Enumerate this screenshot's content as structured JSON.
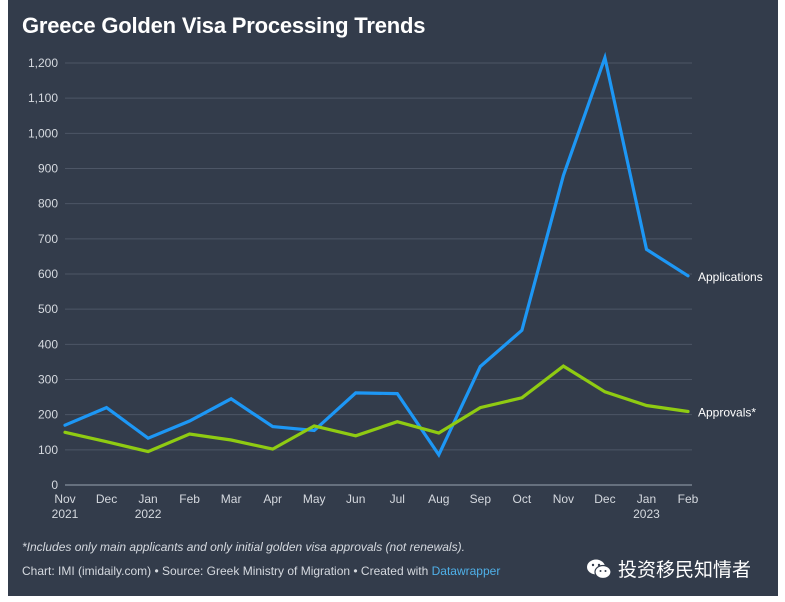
{
  "title": "Greece Golden Visa Processing Trends",
  "note": "*Includes only main applicants and only initial golden visa approvals (not renewals).",
  "credit": {
    "prefix": "Chart: IMI (imidaily.com) • Source: Greek Ministry of Migration • Created with ",
    "tool": "Datawrapper"
  },
  "watermark": {
    "text": "投资移民知情者",
    "icon": "wechat-icon"
  },
  "colors": {
    "background": "#333c4b",
    "applications": "#1d97f5",
    "approvals": "#8fcb12",
    "grid": "#4d5666"
  },
  "chart_data": {
    "type": "line",
    "title": "Greece Golden Visa Processing Trends",
    "x": [
      "Nov",
      "Dec",
      "Jan",
      "Feb",
      "Mar",
      "Apr",
      "May",
      "Jun",
      "Jul",
      "Aug",
      "Sep",
      "Oct",
      "Nov",
      "Dec",
      "Jan",
      "Feb"
    ],
    "x_year_labels": {
      "0": "2021",
      "2": "2022",
      "14": "2023"
    },
    "ylim": [
      0,
      1200
    ],
    "yticks": [
      0,
      100,
      200,
      300,
      400,
      500,
      600,
      700,
      800,
      900,
      1000,
      1100,
      1200
    ],
    "ytick_labels": [
      "0",
      "100",
      "200",
      "300",
      "400",
      "500",
      "600",
      "700",
      "800",
      "900",
      "1,000",
      "1,100",
      "1,200"
    ],
    "grid": true,
    "legend": "inline labels at line ends",
    "series": [
      {
        "name": "Applications",
        "color": "#1d97f5",
        "values": [
          170,
          220,
          133,
          182,
          245,
          166,
          155,
          262,
          260,
          86,
          337,
          440,
          880,
          1215,
          670,
          595
        ]
      },
      {
        "name": "Approvals*",
        "color": "#8fcb12",
        "values": [
          150,
          123,
          95,
          145,
          128,
          102,
          168,
          140,
          180,
          148,
          220,
          248,
          338,
          265,
          226,
          209
        ]
      }
    ]
  }
}
